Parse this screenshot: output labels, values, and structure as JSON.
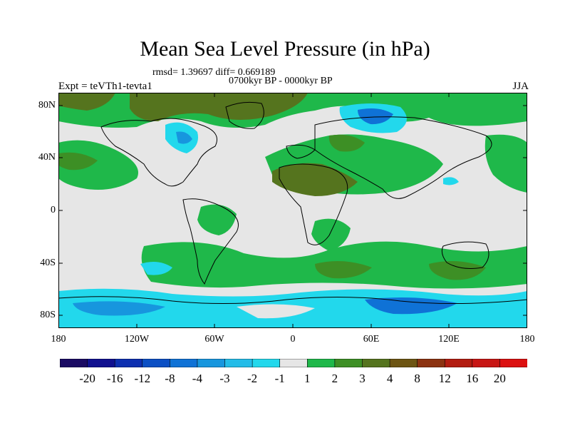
{
  "title": "Mean Sea Level Pressure (in hPa)",
  "stats_line": "rmsd= 1.39697 diff= 0.669189",
  "period_line": "0700kyr BP - 0000kyr BP",
  "expt_label": "Expt = teVTh1-tevta1",
  "season": "JJA",
  "y_ticks": [
    "80N",
    "40N",
    "0",
    "40S",
    "80S"
  ],
  "x_ticks": [
    "180",
    "120W",
    "60W",
    "0",
    "60E",
    "120E",
    "180"
  ],
  "colorbar": {
    "labels": [
      "-20",
      "-16",
      "-12",
      "-8",
      "-4",
      "-3",
      "-2",
      "-1",
      "1",
      "2",
      "3",
      "4",
      "8",
      "12",
      "16",
      "20"
    ],
    "colors": [
      "#1a0a63",
      "#10108f",
      "#0d2fb0",
      "#0b4fc4",
      "#0f72d6",
      "#1796de",
      "#22bce8",
      "#22d8ec",
      "#e6e6e6",
      "#1fb84a",
      "#3d8f25",
      "#55741e",
      "#6d5513",
      "#8c3210",
      "#b31c10",
      "#c81614",
      "#dc1010"
    ]
  },
  "palette": {
    "neutral": "#e6e6e6",
    "pos_light": "#1fb84a",
    "pos_mid": "#3d8f25",
    "pos_dark": "#55741e",
    "pos_strong": "#6d5513",
    "neg_light": "#22d8ec",
    "neg_mid": "#1796de",
    "neg_dark": "#0f72d6"
  }
}
